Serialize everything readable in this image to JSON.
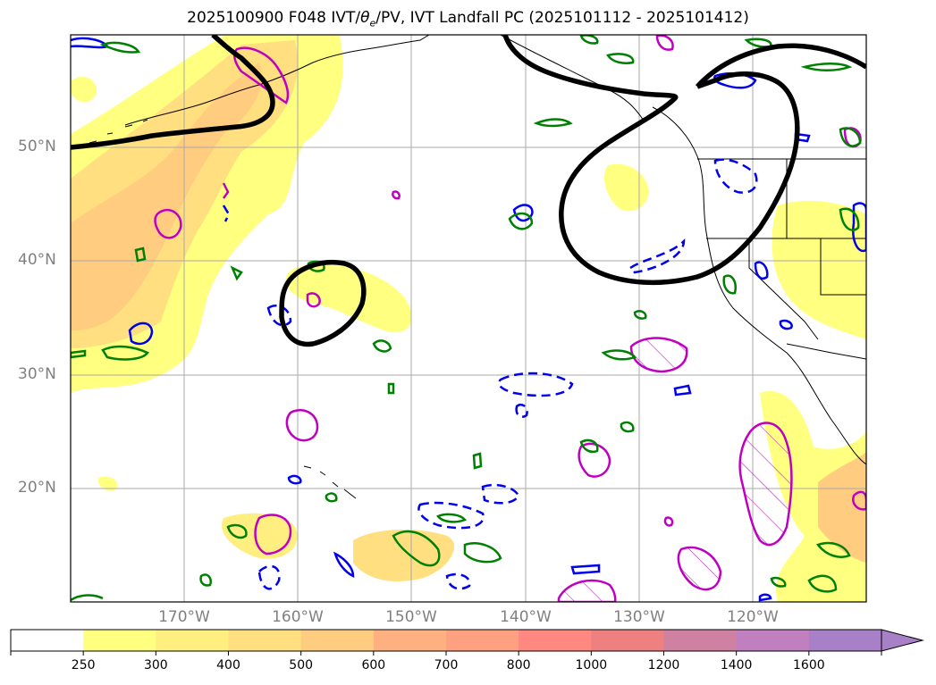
{
  "title_pre": "2025100900 F048 IVT/",
  "title_theta": "θ",
  "title_sub": "e",
  "title_post": "/PV, IVT Landfall PC (2025101112 - 2025101412)",
  "lat_labels": [
    "50°N",
    "40°N",
    "30°N",
    "20°N"
  ],
  "lon_labels": [
    "170°W",
    "160°W",
    "150°W",
    "140°W",
    "130°W",
    "120°W"
  ],
  "colorbar": {
    "ticks": [
      "250",
      "300",
      "400",
      "500",
      "600",
      "700",
      "800",
      "1000",
      "1200",
      "1400",
      "1600"
    ],
    "colors": [
      "#ffffff",
      "#ffff80",
      "#ffef80",
      "#ffdf80",
      "#ffcc80",
      "#ffb080",
      "#ffa080",
      "#ff8880",
      "#ee8080",
      "#d080a0",
      "#c080c0",
      "#a880c8"
    ]
  },
  "contour_colors": {
    "landfall_pc": "#000000",
    "theta_e": "#008000",
    "pv_pos": "#c000c0",
    "pv_neg": "#0000ee",
    "coast": "#000000"
  }
}
